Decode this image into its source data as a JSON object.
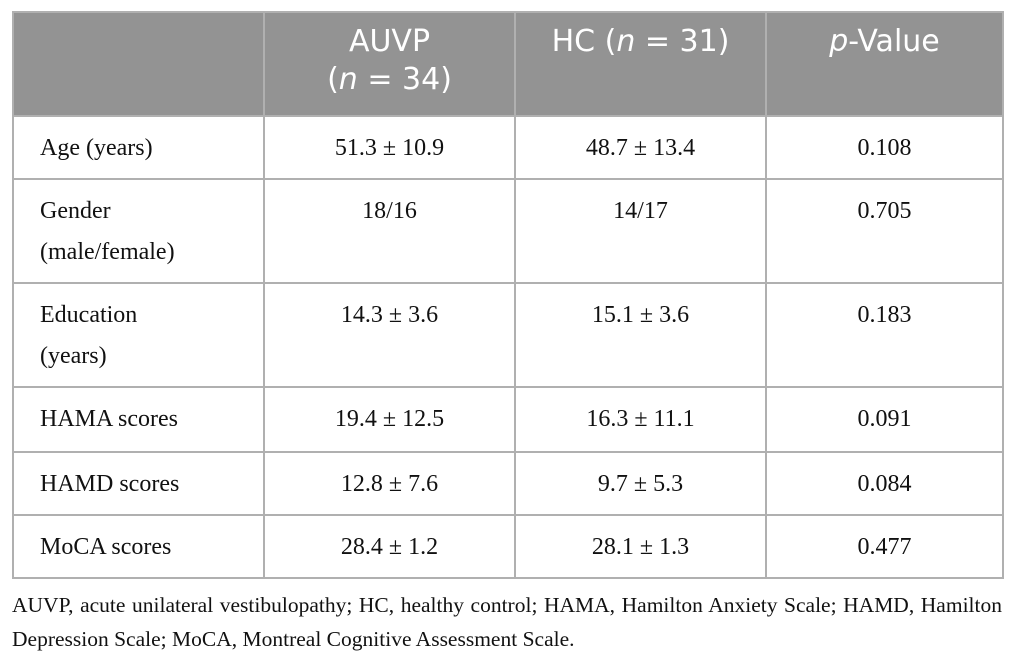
{
  "table": {
    "header": [
      {
        "lines": [
          [
            {
              "text": "AUVP"
            }
          ],
          [
            {
              "text": "("
            },
            {
              "text": "n",
              "italic": true
            },
            {
              "text": " = 34)"
            }
          ]
        ]
      },
      {
        "lines": [
          [
            {
              "text": "HC ("
            },
            {
              "text": "n",
              "italic": true
            },
            {
              "text": " = 31)"
            }
          ]
        ]
      },
      {
        "lines": [
          [
            {
              "text": "p",
              "italic": true
            },
            {
              "text": "-Value"
            }
          ]
        ]
      }
    ],
    "rows": [
      [
        "Age (years)",
        "51.3 ± 10.9",
        "48.7 ± 13.4",
        "0.108"
      ],
      [
        "Gender (male/female)",
        "18/16",
        "14/17",
        "0.705"
      ],
      [
        "Education (years)",
        "14.3 ± 3.6",
        "15.1 ± 3.6",
        "0.183"
      ],
      [
        "HAMA scores",
        "19.4 ± 12.5",
        "16.3 ± 11.1",
        "0.091"
      ],
      [
        "HAMD scores",
        "12.8 ± 7.6",
        "9.7 ± 5.3",
        "0.084"
      ],
      [
        "MoCA scores",
        "28.4 ± 1.2",
        "28.1 ± 1.3",
        "0.477"
      ]
    ],
    "footnote": "AUVP, acute unilateral vestibulopathy; HC, healthy control; HAMA, Hamilton Anxiety Scale; HAMD, Hamilton Depression Scale; MoCA, Montreal Cognitive Assessment Scale."
  }
}
